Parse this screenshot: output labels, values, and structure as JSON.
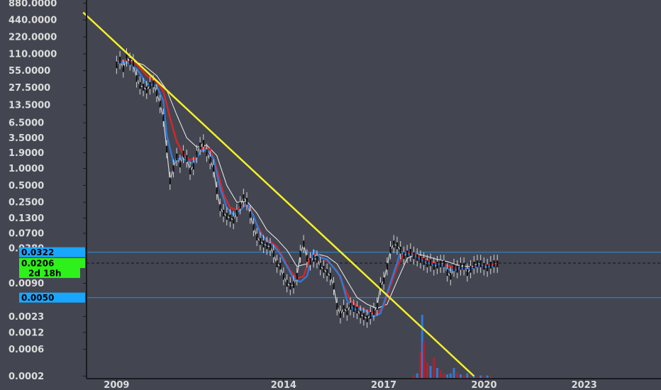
{
  "colors": {
    "background": "#434651",
    "axis": "#1a1b1f",
    "trendline": "#f5f125",
    "price_bars": "#d6d6d6",
    "ema_fast": "#2f7ad6",
    "ema_mid": "#d8262a",
    "sma_slow": "#f2f2f2",
    "candle_body": "#111111",
    "level_line": "#2b8fd6",
    "level_tag": "#19a6ff",
    "price_tag": "#2ef01a",
    "volume_up": "#2f7ad6",
    "volume_down": "#b3212a"
  },
  "chart_data": {
    "type": "line",
    "scale": "log",
    "title": "",
    "xlabel": "",
    "ylabel": "",
    "y_ticks": [
      {
        "value": 880,
        "label": "880.0000"
      },
      {
        "value": 440,
        "label": "440.0000"
      },
      {
        "value": 220,
        "label": "220.0000"
      },
      {
        "value": 110,
        "label": "110.0000"
      },
      {
        "value": 55,
        "label": "55.0000"
      },
      {
        "value": 27.5,
        "label": "27.5000"
      },
      {
        "value": 13.5,
        "label": "13.5000"
      },
      {
        "value": 6.5,
        "label": "6.5000"
      },
      {
        "value": 3.5,
        "label": "3.5000"
      },
      {
        "value": 1.9,
        "label": "1.9000"
      },
      {
        "value": 1.0,
        "label": "1.0000"
      },
      {
        "value": 0.5,
        "label": "0.5000"
      },
      {
        "value": 0.25,
        "label": "0.2500"
      },
      {
        "value": 0.13,
        "label": "0.1300"
      },
      {
        "value": 0.07,
        "label": "0.0700"
      },
      {
        "value": 0.038,
        "label": "0.0380"
      },
      {
        "value": 0.009,
        "label": "0.0090"
      },
      {
        "value": 0.0023,
        "label": "0.0023"
      },
      {
        "value": 0.0012,
        "label": "0.0012"
      },
      {
        "value": 0.0006,
        "label": "0.0006"
      },
      {
        "value": 0.0002,
        "label": "0.0002"
      }
    ],
    "x_ticks": [
      {
        "value": 2009,
        "label": "2009"
      },
      {
        "value": 2014,
        "label": "2014"
      },
      {
        "value": 2017,
        "label": "2017"
      },
      {
        "value": 2020,
        "label": "2020"
      },
      {
        "value": 2023,
        "label": "2023"
      }
    ],
    "xlim": [
      2008.1,
      2025.3
    ],
    "ylim": [
      0.00018,
      1000
    ],
    "levels": [
      {
        "value": 0.0322,
        "label": "0.0322"
      },
      {
        "value": 0.005,
        "label": "0.0050"
      }
    ],
    "current_price": {
      "value": 0.0206,
      "label": "0.0206",
      "countdown": "2d 18h"
    },
    "trendline": {
      "points": [
        [
          2008.0,
          600
        ],
        [
          2019.7,
          0.0002
        ]
      ]
    },
    "series": [
      {
        "key": "price",
        "x": [
          2009.0,
          2009.1,
          2009.2,
          2009.3,
          2009.4,
          2009.5,
          2009.6,
          2009.7,
          2009.8,
          2009.9,
          2010.0,
          2010.1,
          2010.2,
          2010.3,
          2010.4,
          2010.5,
          2010.6,
          2010.7,
          2010.8,
          2010.9,
          2011.0,
          2011.1,
          2011.2,
          2011.3,
          2011.4,
          2011.5,
          2011.6,
          2011.7,
          2011.8,
          2011.9,
          2012.0,
          2012.1,
          2012.2,
          2012.3,
          2012.4,
          2012.5,
          2012.6,
          2012.7,
          2012.8,
          2012.9,
          2013.0,
          2013.1,
          2013.2,
          2013.3,
          2013.4,
          2013.5,
          2013.6,
          2013.7,
          2013.8,
          2013.9,
          2014.0,
          2014.1,
          2014.2,
          2014.3,
          2014.4,
          2014.5,
          2014.6,
          2014.7,
          2014.8,
          2014.9,
          2015.0,
          2015.1,
          2015.2,
          2015.3,
          2015.4,
          2015.5,
          2015.6,
          2015.7,
          2015.8,
          2015.9,
          2016.0,
          2016.1,
          2016.2,
          2016.3,
          2016.4,
          2016.5,
          2016.6,
          2016.7,
          2016.8,
          2016.9,
          2017.0,
          2017.1,
          2017.2,
          2017.3,
          2017.4,
          2017.5,
          2017.6,
          2017.7,
          2017.8,
          2017.9,
          2018.0,
          2018.1,
          2018.2,
          2018.3,
          2018.4,
          2018.5,
          2018.6,
          2018.7,
          2018.8,
          2018.9,
          2019.0,
          2019.1,
          2019.2,
          2019.3,
          2019.4,
          2019.5,
          2019.6,
          2019.7,
          2019.8,
          2019.9,
          2020.0,
          2020.1,
          2020.2,
          2020.3,
          2020.4
        ],
        "values": [
          70,
          85,
          60,
          95,
          80,
          75,
          40,
          30,
          28,
          25,
          30,
          32,
          22,
          14,
          8,
          2.2,
          0.6,
          1.0,
          1.6,
          1.2,
          1.8,
          1.5,
          0.9,
          1.1,
          1.8,
          2.5,
          2.8,
          1.9,
          1.4,
          1.0,
          0.4,
          0.2,
          0.16,
          0.14,
          0.13,
          0.12,
          0.16,
          0.22,
          0.3,
          0.26,
          0.15,
          0.09,
          0.06,
          0.05,
          0.045,
          0.042,
          0.04,
          0.03,
          0.02,
          0.018,
          0.012,
          0.009,
          0.008,
          0.0085,
          0.012,
          0.03,
          0.045,
          0.025,
          0.022,
          0.025,
          0.024,
          0.018,
          0.016,
          0.014,
          0.012,
          0.008,
          0.0035,
          0.0025,
          0.0032,
          0.0028,
          0.0035,
          0.0032,
          0.003,
          0.0025,
          0.0023,
          0.0021,
          0.0024,
          0.0028,
          0.0035,
          0.008,
          0.01,
          0.018,
          0.035,
          0.045,
          0.042,
          0.035,
          0.028,
          0.03,
          0.032,
          0.028,
          0.026,
          0.024,
          0.022,
          0.02,
          0.021,
          0.018,
          0.019,
          0.02,
          0.02,
          0.014,
          0.012,
          0.017,
          0.016,
          0.018,
          0.018,
          0.014,
          0.016,
          0.019,
          0.02,
          0.02,
          0.018,
          0.017,
          0.019,
          0.02,
          0.02
        ]
      },
      {
        "key": "ema_fast",
        "x": [
          2009.0,
          2009.3,
          2009.6,
          2009.9,
          2010.2,
          2010.4,
          2010.5,
          2010.7,
          2010.9,
          2011.1,
          2011.3,
          2011.5,
          2011.7,
          2011.9,
          2012.1,
          2012.3,
          2012.5,
          2012.7,
          2012.9,
          2013.1,
          2013.3,
          2013.5,
          2013.7,
          2013.9,
          2014.1,
          2014.3,
          2014.5,
          2014.7,
          2014.9,
          2015.1,
          2015.3,
          2015.5,
          2015.7,
          2015.9,
          2016.1,
          2016.3,
          2016.5,
          2016.7,
          2016.9,
          2017.1,
          2017.3,
          2017.5,
          2017.7,
          2017.9,
          2018.1,
          2018.3,
          2018.5,
          2018.7,
          2018.9,
          2019.1,
          2019.3,
          2019.5,
          2019.7,
          2019.9,
          2020.1,
          2020.3
        ],
        "values": [
          75,
          78,
          60,
          32,
          30,
          16,
          4.0,
          1.3,
          1.5,
          1.4,
          1.2,
          2.0,
          2.2,
          1.5,
          0.45,
          0.2,
          0.15,
          0.18,
          0.24,
          0.14,
          0.07,
          0.052,
          0.042,
          0.03,
          0.018,
          0.011,
          0.0095,
          0.012,
          0.035,
          0.026,
          0.024,
          0.017,
          0.012,
          0.0045,
          0.003,
          0.0032,
          0.0028,
          0.0023,
          0.0026,
          0.006,
          0.014,
          0.032,
          0.03,
          0.028,
          0.024,
          0.021,
          0.019,
          0.02,
          0.016,
          0.015,
          0.017,
          0.016,
          0.017,
          0.019,
          0.018,
          0.018
        ]
      },
      {
        "key": "ema_mid",
        "x": [
          2009.0,
          2009.3,
          2009.6,
          2009.9,
          2010.2,
          2010.4,
          2010.6,
          2010.8,
          2011.0,
          2011.2,
          2011.4,
          2011.6,
          2011.8,
          2012.0,
          2012.2,
          2012.4,
          2012.6,
          2012.8,
          2013.0,
          2013.2,
          2013.4,
          2013.6,
          2013.8,
          2014.0,
          2014.2,
          2014.4,
          2014.6,
          2014.8,
          2015.0,
          2015.2,
          2015.4,
          2015.6,
          2015.8,
          2016.0,
          2016.2,
          2016.4,
          2016.6,
          2016.8,
          2017.0,
          2017.2,
          2017.4,
          2017.6,
          2017.8,
          2018.0,
          2018.2,
          2018.4,
          2018.6,
          2018.8,
          2019.0,
          2019.2,
          2019.4,
          2019.6,
          2019.8,
          2020.0,
          2020.2,
          2020.4
        ],
        "values": [
          78,
          82,
          72,
          45,
          35,
          24,
          8,
          3.0,
          1.8,
          1.4,
          1.6,
          2.4,
          2.2,
          1.0,
          0.35,
          0.2,
          0.18,
          0.22,
          0.2,
          0.1,
          0.06,
          0.05,
          0.04,
          0.025,
          0.015,
          0.011,
          0.012,
          0.028,
          0.03,
          0.025,
          0.02,
          0.015,
          0.008,
          0.0045,
          0.0035,
          0.0031,
          0.0028,
          0.0025,
          0.0035,
          0.008,
          0.018,
          0.03,
          0.032,
          0.028,
          0.025,
          0.022,
          0.02,
          0.019,
          0.018,
          0.016,
          0.016,
          0.017,
          0.018,
          0.019,
          0.019,
          0.0195
        ]
      },
      {
        "key": "sma_slow",
        "x": [
          2009.0,
          2009.4,
          2009.8,
          2010.2,
          2010.5,
          2010.8,
          2011.1,
          2011.4,
          2011.7,
          2012.0,
          2012.3,
          2012.6,
          2012.9,
          2013.2,
          2013.5,
          2013.8,
          2014.1,
          2014.4,
          2014.7,
          2015.0,
          2015.3,
          2015.6,
          2015.9,
          2016.2,
          2016.5,
          2016.8,
          2017.1,
          2017.4,
          2017.7,
          2018.0,
          2018.3,
          2018.6,
          2018.9,
          2019.2,
          2019.5,
          2019.8,
          2020.1,
          2020.4
        ],
        "values": [
          80,
          85,
          70,
          45,
          25,
          9,
          3.5,
          2.4,
          2.6,
          1.7,
          0.5,
          0.25,
          0.26,
          0.16,
          0.08,
          0.055,
          0.035,
          0.018,
          0.02,
          0.03,
          0.027,
          0.02,
          0.01,
          0.005,
          0.0038,
          0.0032,
          0.0038,
          0.01,
          0.025,
          0.03,
          0.027,
          0.024,
          0.022,
          0.019,
          0.018,
          0.018,
          0.019,
          0.02
        ]
      }
    ],
    "volume": {
      "x": [
        2017.9,
        2018.0,
        2018.1,
        2018.15,
        2018.2,
        2018.3,
        2018.4,
        2018.5,
        2018.6,
        2018.7,
        2018.8,
        2018.9,
        2019.0,
        2019.1,
        2019.2,
        2019.3,
        2019.4,
        2019.5,
        2019.6,
        2019.7,
        2019.8,
        2019.9,
        2020.0,
        2020.1,
        2020.2
      ],
      "values": [
        0.03,
        0.05,
        0.25,
        0.6,
        0.35,
        0.15,
        0.12,
        0.2,
        0.1,
        0.08,
        0.05,
        0.04,
        0.05,
        0.1,
        0.06,
        0.04,
        0.03,
        0.05,
        0.02,
        0.03,
        0.02,
        0.03,
        0.02,
        0.03,
        0.02
      ],
      "up": [
        false,
        true,
        false,
        true,
        false,
        false,
        true,
        false,
        true,
        false,
        false,
        true,
        true,
        true,
        false,
        true,
        false,
        true,
        false,
        true,
        false,
        true,
        false,
        true,
        false
      ]
    }
  }
}
